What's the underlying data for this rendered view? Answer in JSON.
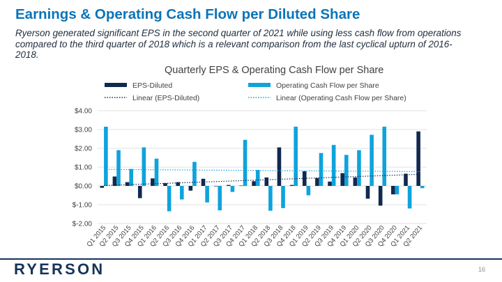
{
  "slide": {
    "title": "Earnings & Operating Cash Flow per Diluted Share",
    "subtitle": "Ryerson generated significant EPS in the second quarter of 2021 while using less cash flow from operations compared to the third quarter of 2018 which is a relevant comparison from the last cyclical upturn of 2016-2018.",
    "logo": "RYERSON",
    "page_number": "16"
  },
  "colors": {
    "eps": "#12294f",
    "ocf": "#0fa3dc",
    "title": "#0b74b8",
    "grid": "#d9d9d9",
    "axis_text": "#404040"
  },
  "chart_data": {
    "type": "bar",
    "title": "Quarterly EPS & Operating Cash Flow per Share",
    "categories": [
      "Q1 2015",
      "Q2 2015",
      "Q3 2015",
      "Q4 2015",
      "Q1 2016",
      "Q2 2016",
      "Q3 2016",
      "Q4 2016",
      "Q1 2017",
      "Q2 2017",
      "Q3 2017",
      "Q4 2017",
      "Q1 2018",
      "Q2 2018",
      "Q3 2018",
      "Q4 2018",
      "Q1 2019",
      "Q2 2019",
      "Q3 2019",
      "Q4 2019",
      "Q1 2020",
      "Q2 2020",
      "Q3 2020",
      "Q4 2020",
      "Q1 2021",
      "Q2 2021"
    ],
    "series": [
      {
        "name": "EPS-Diluted",
        "values": [
          -0.1,
          0.5,
          0.2,
          -0.65,
          0.4,
          0.15,
          0.2,
          -0.25,
          0.38,
          -0.02,
          0.05,
          0.02,
          0.25,
          0.45,
          2.05,
          0.05,
          0.78,
          0.42,
          0.23,
          0.68,
          0.45,
          -0.68,
          -1.05,
          -0.45,
          0.65,
          2.9
        ]
      },
      {
        "name": "Operating Cash Flow per Share",
        "values": [
          3.15,
          1.9,
          0.9,
          2.05,
          1.45,
          -1.35,
          -0.72,
          1.28,
          -0.88,
          -1.3,
          -0.32,
          2.45,
          0.85,
          -1.32,
          -1.18,
          3.15,
          -0.5,
          1.75,
          2.18,
          1.65,
          1.9,
          2.72,
          3.15,
          -0.45,
          -1.2,
          -0.12
        ]
      }
    ],
    "trendlines": [
      {
        "name": "Linear (EPS-Diluted)",
        "of": "EPS-Diluted",
        "start": 0.02,
        "end": 0.62
      },
      {
        "name": "Linear (Operating Cash Flow per Share)",
        "of": "Operating Cash Flow per Share",
        "start": 0.88,
        "end": 0.76
      }
    ],
    "y_ticks": [
      "$4.00",
      "$3.00",
      "$2.00",
      "$1.00",
      "$0.00",
      "$-1.00",
      "$-2.00"
    ],
    "ylim": [
      -2,
      4
    ],
    "grid": true,
    "legend_position": "top"
  }
}
